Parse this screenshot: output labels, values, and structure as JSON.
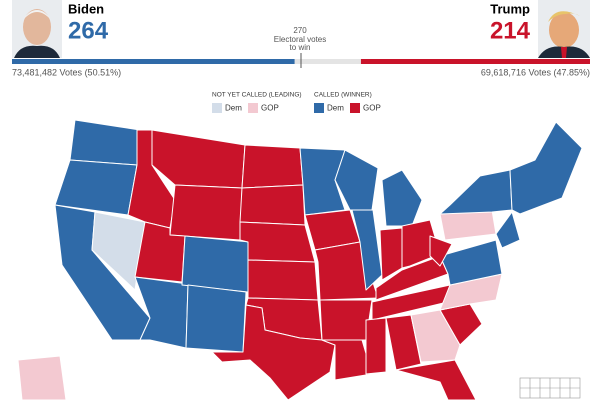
{
  "header": {
    "candidates": [
      {
        "name": "Biden",
        "electoral_votes": 264,
        "votes_label": "73,481,482 Votes (50.51%)",
        "color": "#2f6aa8"
      },
      {
        "name": "Trump",
        "electoral_votes": 214,
        "votes_label": "69,618,716 Votes (47.85%)",
        "color": "#c9132a"
      }
    ],
    "threshold": {
      "value": 270,
      "caption": [
        "Electoral votes",
        "to win"
      ]
    }
  },
  "legend": {
    "groups": [
      {
        "title": "NOT YET CALLED (LEADING)",
        "items": [
          {
            "label": "Dem",
            "color": "#d3dde9"
          },
          {
            "label": "GOP",
            "color": "#f3c9d1"
          }
        ]
      },
      {
        "title": "CALLED (WINNER)",
        "items": [
          {
            "label": "Dem",
            "color": "#2f6aa8"
          },
          {
            "label": "GOP",
            "color": "#c9132a"
          }
        ]
      }
    ]
  }
}
